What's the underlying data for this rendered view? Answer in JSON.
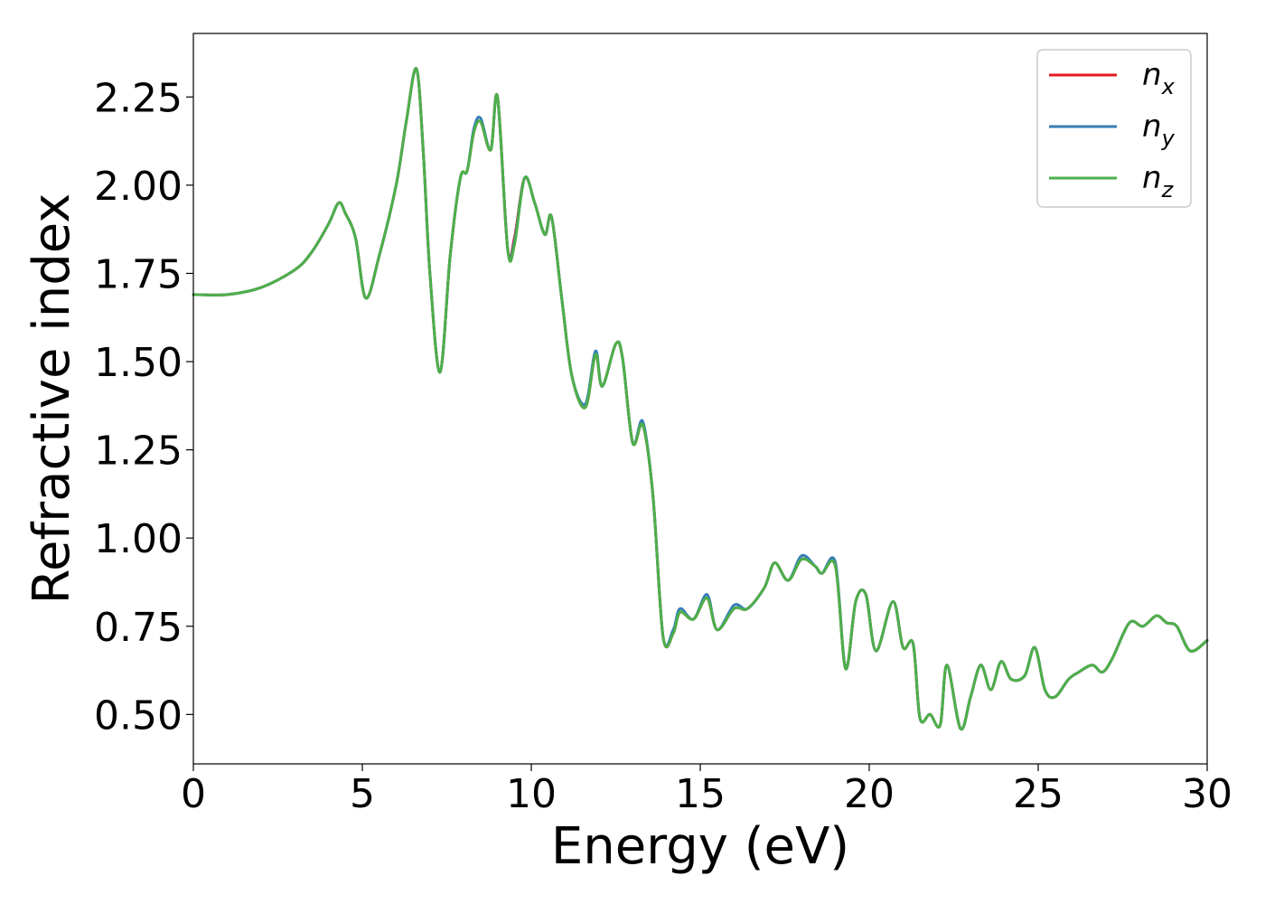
{
  "chart_data": {
    "type": "line",
    "title": "",
    "xlabel": "Energy (eV)",
    "ylabel": "Refractive index",
    "xlim": [
      0,
      30
    ],
    "ylim": [
      0.36,
      2.43
    ],
    "xticks": [
      0,
      5,
      10,
      15,
      20,
      25,
      30
    ],
    "xtick_labels": [
      "0",
      "5",
      "10",
      "15",
      "20",
      "25",
      "30"
    ],
    "yticks": [
      0.5,
      0.75,
      1.0,
      1.25,
      1.5,
      1.75,
      2.0,
      2.25
    ],
    "ytick_labels": [
      "0.50",
      "0.75",
      "1.00",
      "1.25",
      "1.50",
      "1.75",
      "2.00",
      "2.25"
    ],
    "grid": false,
    "legend_position": "top-right",
    "x": [
      0,
      1,
      2,
      3,
      3.5,
      4,
      4.3,
      4.5,
      4.8,
      5.1,
      5.5,
      6,
      6.3,
      6.6,
      6.8,
      7.0,
      7.3,
      7.6,
      7.9,
      8.1,
      8.3,
      8.5,
      8.8,
      9.0,
      9.3,
      9.5,
      9.8,
      10.1,
      10.4,
      10.6,
      10.9,
      11.2,
      11.6,
      11.9,
      12.1,
      12.5,
      12.7,
      13.0,
      13.3,
      13.6,
      13.9,
      14.2,
      14.4,
      14.8,
      15.2,
      15.5,
      16.0,
      16.4,
      16.9,
      17.2,
      17.6,
      18.0,
      18.4,
      18.6,
      19.0,
      19.3,
      19.6,
      19.9,
      20.2,
      20.7,
      21.0,
      21.3,
      21.5,
      21.8,
      22.1,
      22.3,
      22.7,
      23.0,
      23.3,
      23.6,
      23.9,
      24.2,
      24.6,
      24.9,
      25.2,
      25.5,
      25.9,
      26.2,
      26.6,
      26.9,
      27.2,
      27.7,
      28.1,
      28.5,
      28.8,
      29.1,
      29.5,
      30.0
    ],
    "series": [
      {
        "name": "n_x",
        "color": "#e41a1c",
        "values": [
          1.69,
          1.69,
          1.71,
          1.76,
          1.81,
          1.89,
          1.95,
          1.92,
          1.85,
          1.68,
          1.8,
          2.0,
          2.18,
          2.33,
          2.1,
          1.75,
          1.47,
          1.8,
          2.02,
          2.04,
          2.15,
          2.18,
          2.1,
          2.25,
          1.82,
          1.85,
          2.02,
          1.95,
          1.86,
          1.91,
          1.68,
          1.46,
          1.37,
          1.52,
          1.43,
          1.55,
          1.51,
          1.27,
          1.32,
          1.12,
          0.72,
          0.73,
          0.79,
          0.77,
          0.83,
          0.74,
          0.8,
          0.8,
          0.86,
          0.93,
          0.88,
          0.94,
          0.92,
          0.9,
          0.92,
          0.63,
          0.82,
          0.84,
          0.68,
          0.82,
          0.69,
          0.7,
          0.49,
          0.5,
          0.47,
          0.64,
          0.46,
          0.55,
          0.64,
          0.57,
          0.65,
          0.6,
          0.61,
          0.69,
          0.57,
          0.55,
          0.6,
          0.62,
          0.64,
          0.62,
          0.66,
          0.76,
          0.75,
          0.78,
          0.76,
          0.75,
          0.68,
          0.71
        ]
      },
      {
        "name": "n_y",
        "color": "#377eb8",
        "values": [
          1.69,
          1.69,
          1.71,
          1.76,
          1.81,
          1.89,
          1.95,
          1.92,
          1.85,
          1.68,
          1.8,
          2.0,
          2.18,
          2.33,
          2.1,
          1.75,
          1.47,
          1.8,
          2.02,
          2.04,
          2.16,
          2.19,
          2.1,
          2.25,
          1.82,
          1.84,
          2.02,
          1.95,
          1.86,
          1.91,
          1.68,
          1.46,
          1.38,
          1.53,
          1.43,
          1.55,
          1.51,
          1.27,
          1.33,
          1.12,
          0.72,
          0.74,
          0.8,
          0.77,
          0.84,
          0.74,
          0.81,
          0.8,
          0.86,
          0.93,
          0.88,
          0.95,
          0.92,
          0.9,
          0.93,
          0.63,
          0.82,
          0.84,
          0.68,
          0.82,
          0.69,
          0.7,
          0.49,
          0.5,
          0.47,
          0.64,
          0.46,
          0.55,
          0.64,
          0.57,
          0.65,
          0.6,
          0.61,
          0.69,
          0.57,
          0.55,
          0.6,
          0.62,
          0.64,
          0.62,
          0.66,
          0.76,
          0.75,
          0.78,
          0.76,
          0.75,
          0.68,
          0.71
        ]
      },
      {
        "name": "n_z",
        "color": "#4daf4a",
        "values": [
          1.69,
          1.69,
          1.71,
          1.76,
          1.81,
          1.89,
          1.95,
          1.92,
          1.85,
          1.68,
          1.8,
          2.0,
          2.18,
          2.33,
          2.1,
          1.75,
          1.47,
          1.8,
          2.02,
          2.04,
          2.15,
          2.18,
          2.1,
          2.25,
          1.82,
          1.83,
          2.02,
          1.95,
          1.86,
          1.91,
          1.68,
          1.46,
          1.37,
          1.52,
          1.43,
          1.55,
          1.51,
          1.27,
          1.32,
          1.12,
          0.72,
          0.73,
          0.79,
          0.77,
          0.83,
          0.74,
          0.8,
          0.8,
          0.86,
          0.93,
          0.88,
          0.94,
          0.92,
          0.9,
          0.92,
          0.63,
          0.82,
          0.84,
          0.68,
          0.82,
          0.69,
          0.7,
          0.49,
          0.5,
          0.47,
          0.64,
          0.46,
          0.55,
          0.64,
          0.57,
          0.65,
          0.6,
          0.61,
          0.69,
          0.57,
          0.55,
          0.6,
          0.62,
          0.64,
          0.62,
          0.66,
          0.76,
          0.75,
          0.78,
          0.76,
          0.75,
          0.68,
          0.71
        ]
      }
    ],
    "legend": [
      {
        "base": "n",
        "sub": "x",
        "color": "#e41a1c"
      },
      {
        "base": "n",
        "sub": "y",
        "color": "#377eb8"
      },
      {
        "base": "n",
        "sub": "z",
        "color": "#4daf4a"
      }
    ]
  }
}
